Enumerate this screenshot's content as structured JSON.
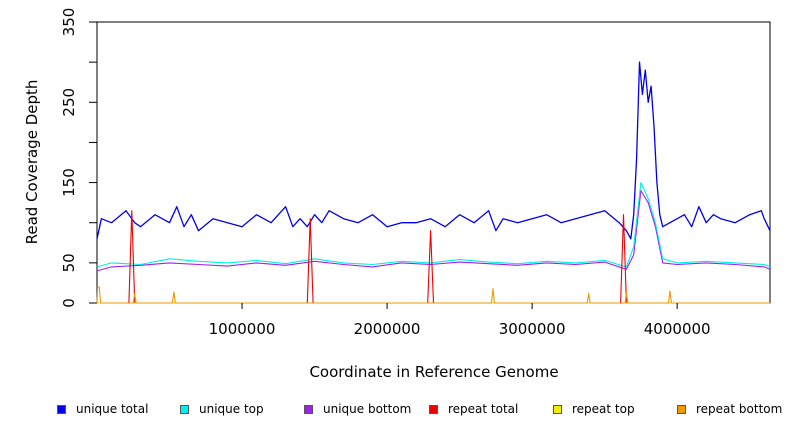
{
  "chart_data": {
    "type": "line",
    "xlabel": "Coordinate in Reference Genome",
    "ylabel": "Read Coverage Depth",
    "xlim": [
      0,
      4640000
    ],
    "ylim": [
      0,
      350
    ],
    "x_ticks": [
      {
        "value": 1000000,
        "label": "1000000"
      },
      {
        "value": 2000000,
        "label": "2000000"
      },
      {
        "value": 3000000,
        "label": "3000000"
      },
      {
        "value": 4000000,
        "label": "4000000"
      }
    ],
    "y_ticks": [
      {
        "value": 0,
        "label": "0",
        "labeled": true
      },
      {
        "value": 50,
        "label": "50",
        "labeled": true
      },
      {
        "value": 100,
        "label": "",
        "labeled": false
      },
      {
        "value": 150,
        "label": "150",
        "labeled": true
      },
      {
        "value": 200,
        "label": "",
        "labeled": false
      },
      {
        "value": 250,
        "label": "250",
        "labeled": true
      },
      {
        "value": 300,
        "label": "",
        "labeled": false
      },
      {
        "value": 350,
        "label": "350",
        "labeled": true
      }
    ],
    "grid": false,
    "legend_position": "bottom",
    "series": [
      {
        "name": "unique total",
        "color": "#0000ee",
        "x": [
          0,
          30000,
          100000,
          200000,
          260000,
          300000,
          400000,
          500000,
          550000,
          600000,
          650000,
          700000,
          800000,
          900000,
          1000000,
          1100000,
          1200000,
          1300000,
          1350000,
          1400000,
          1450000,
          1500000,
          1550000,
          1600000,
          1700000,
          1800000,
          1900000,
          2000000,
          2100000,
          2200000,
          2300000,
          2400000,
          2500000,
          2600000,
          2700000,
          2750000,
          2800000,
          2900000,
          3000000,
          3100000,
          3200000,
          3300000,
          3400000,
          3500000,
          3600000,
          3650000,
          3680000,
          3700000,
          3720000,
          3740000,
          3760000,
          3780000,
          3800000,
          3820000,
          3840000,
          3860000,
          3880000,
          3900000,
          3950000,
          4000000,
          4050000,
          4100000,
          4150000,
          4200000,
          4250000,
          4300000,
          4400000,
          4500000,
          4580000,
          4600000,
          4640000
        ],
        "values": [
          80,
          105,
          100,
          115,
          100,
          95,
          110,
          100,
          120,
          95,
          110,
          90,
          105,
          100,
          95,
          110,
          100,
          120,
          95,
          105,
          95,
          110,
          100,
          115,
          105,
          100,
          110,
          95,
          100,
          100,
          105,
          95,
          110,
          100,
          115,
          90,
          105,
          100,
          105,
          110,
          100,
          105,
          110,
          115,
          100,
          90,
          80,
          110,
          180,
          300,
          260,
          290,
          250,
          270,
          220,
          150,
          110,
          95,
          100,
          105,
          110,
          95,
          120,
          100,
          110,
          105,
          100,
          110,
          115,
          105,
          90
        ]
      },
      {
        "name": "unique top",
        "color": "#00eeee",
        "x": [
          0,
          100000,
          300000,
          500000,
          700000,
          900000,
          1100000,
          1300000,
          1500000,
          1700000,
          1900000,
          2100000,
          2300000,
          2500000,
          2700000,
          2900000,
          3100000,
          3300000,
          3500000,
          3650000,
          3700000,
          3750000,
          3800000,
          3850000,
          3900000,
          4000000,
          4200000,
          4400000,
          4600000,
          4640000
        ],
        "values": [
          45,
          50,
          48,
          55,
          52,
          50,
          53,
          49,
          55,
          50,
          48,
          52,
          50,
          54,
          51,
          49,
          52,
          50,
          53,
          45,
          70,
          150,
          130,
          100,
          55,
          50,
          52,
          50,
          48,
          45
        ]
      },
      {
        "name": "unique bottom",
        "color": "#a020f0",
        "x": [
          0,
          100000,
          300000,
          500000,
          700000,
          900000,
          1100000,
          1300000,
          1500000,
          1700000,
          1900000,
          2100000,
          2300000,
          2500000,
          2700000,
          2900000,
          3100000,
          3300000,
          3500000,
          3650000,
          3700000,
          3750000,
          3800000,
          3850000,
          3900000,
          4000000,
          4200000,
          4400000,
          4600000,
          4640000
        ],
        "values": [
          40,
          45,
          47,
          50,
          48,
          46,
          50,
          47,
          52,
          48,
          45,
          50,
          48,
          51,
          49,
          47,
          50,
          48,
          51,
          42,
          60,
          140,
          125,
          95,
          50,
          48,
          50,
          48,
          45,
          42
        ]
      },
      {
        "name": "repeat total",
        "color": "#ee0000",
        "x": [
          0,
          220000,
          240000,
          260000,
          1400000,
          1450000,
          1470000,
          1490000,
          2250000,
          2280000,
          2300000,
          2320000,
          3590000,
          3610000,
          3630000,
          3650000,
          4640000
        ],
        "values": [
          0,
          0,
          115,
          0,
          0,
          0,
          105,
          0,
          0,
          0,
          90,
          0,
          0,
          0,
          110,
          0,
          0
        ]
      },
      {
        "name": "repeat top",
        "color": "#eeee00",
        "x": [
          0,
          4640000
        ],
        "values": [
          0,
          0
        ]
      },
      {
        "name": "repeat bottom",
        "color": "#ee9a00",
        "x": [
          0,
          5000,
          15000,
          25000,
          250000,
          260000,
          270000,
          520000,
          530000,
          540000,
          2720000,
          2730000,
          2740000,
          3380000,
          3390000,
          3400000,
          3640000,
          3650000,
          3660000,
          3940000,
          3950000,
          3960000,
          4640000
        ],
        "values": [
          0,
          20,
          20,
          0,
          0,
          12,
          0,
          0,
          14,
          0,
          0,
          18,
          0,
          0,
          12,
          0,
          0,
          13,
          0,
          0,
          15,
          0,
          0
        ]
      }
    ]
  }
}
